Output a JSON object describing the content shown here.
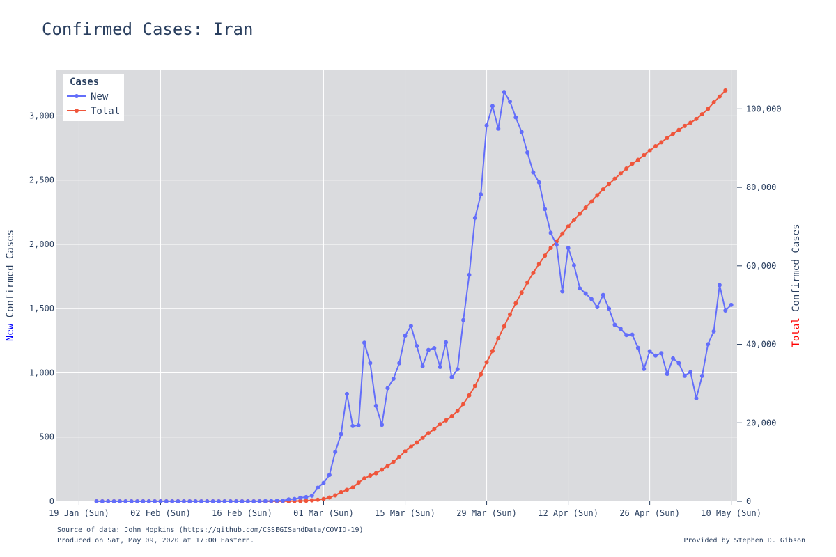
{
  "chart_data": {
    "type": "line",
    "title": "Confirmed Cases: Iran",
    "ylabel_left": {
      "prefix": "New",
      "rest": " Confirmed Cases"
    },
    "ylabel_right": {
      "prefix": "Total",
      "rest": " Confirmed Cases"
    },
    "legend_title": "Cases",
    "legend_placement": "top-left",
    "grid": true,
    "start_date": "2020-01-22",
    "x_range": [
      "2020-01-15",
      "2020-05-11"
    ],
    "x_tick_labels": [
      "19 Jan (Sun)",
      "02 Feb (Sun)",
      "16 Feb (Sun)",
      "01 Mar (Sun)",
      "15 Mar (Sun)",
      "29 Mar (Sun)",
      "12 Apr (Sun)",
      "26 Apr (Sun)",
      "10 May (Sun)"
    ],
    "ylim_left": [
      0,
      3360
    ],
    "ylim_right": [
      0,
      110000
    ],
    "y_ticks_left": [
      "0",
      "500",
      "1,000",
      "1,500",
      "2,000",
      "2,500",
      "3,000"
    ],
    "y_ticks_right": [
      "0",
      "20,000",
      "40,000",
      "60,000",
      "80,000",
      "100,000"
    ],
    "series": [
      {
        "name": "New",
        "color": "#636efa",
        "axis": "left",
        "values": [
          0,
          0,
          0,
          0,
          0,
          0,
          0,
          0,
          0,
          0,
          0,
          0,
          0,
          0,
          0,
          0,
          0,
          0,
          0,
          0,
          0,
          0,
          0,
          0,
          0,
          0,
          0,
          0,
          0,
          2,
          3,
          5,
          5,
          15,
          18,
          28,
          33,
          44,
          106,
          143,
          205,
          385,
          523,
          835,
          586,
          591,
          1234,
          1076,
          743,
          595,
          881,
          954,
          1075,
          1289,
          1365,
          1209,
          1053,
          1178,
          1192,
          1046,
          1237,
          966,
          1028,
          1411,
          1762,
          2206,
          2389,
          2926,
          3076,
          2901,
          3186,
          3111,
          2988,
          2875,
          2715,
          2560,
          2483,
          2274,
          2089,
          1997,
          1634,
          1972,
          1837,
          1657,
          1617,
          1574,
          1512,
          1606,
          1499,
          1374,
          1343,
          1294,
          1297,
          1194,
          1030,
          1168,
          1134,
          1153,
          991,
          1112,
          1075,
          976,
          1006,
          802,
          976,
          1223,
          1323,
          1683,
          1485,
          1529
        ]
      },
      {
        "name": "Total",
        "color": "#ef553b",
        "axis": "right",
        "values": [
          0,
          0,
          0,
          0,
          0,
          0,
          0,
          0,
          0,
          0,
          0,
          0,
          0,
          0,
          0,
          0,
          0,
          0,
          0,
          0,
          0,
          0,
          0,
          0,
          0,
          0,
          0,
          0,
          0,
          2,
          5,
          18,
          28,
          43,
          61,
          95,
          139,
          245,
          388,
          593,
          978,
          1501,
          2336,
          2922,
          3513,
          4747,
          5823,
          6566,
          7161,
          8042,
          9000,
          10075,
          11364,
          12729,
          13938,
          14991,
          16169,
          17361,
          18407,
          19644,
          20610,
          21638,
          23049,
          24811,
          27017,
          29406,
          32332,
          35408,
          38309,
          41495,
          44605,
          47593,
          50468,
          53183,
          55743,
          58226,
          60500,
          62589,
          64586,
          66220,
          68192,
          70029,
          71686,
          73303,
          74877,
          76389,
          77995,
          79494,
          80868,
          82211,
          83505,
          84802,
          85996,
          87026,
          88194,
          89328,
          90481,
          91472,
          92584,
          93657,
          94640,
          95646,
          96448,
          97424,
          98647,
          99970,
          101650,
          103135,
          104691
        ]
      }
    ]
  },
  "footer": {
    "source": "Source of data: John Hopkins (https://github.com/CSSEGISandData/COVID-19)",
    "produced": "Produced on Sat, May 09, 2020 at 17:00 Eastern.",
    "credit": "Provided by Stephen D. Gibson"
  }
}
